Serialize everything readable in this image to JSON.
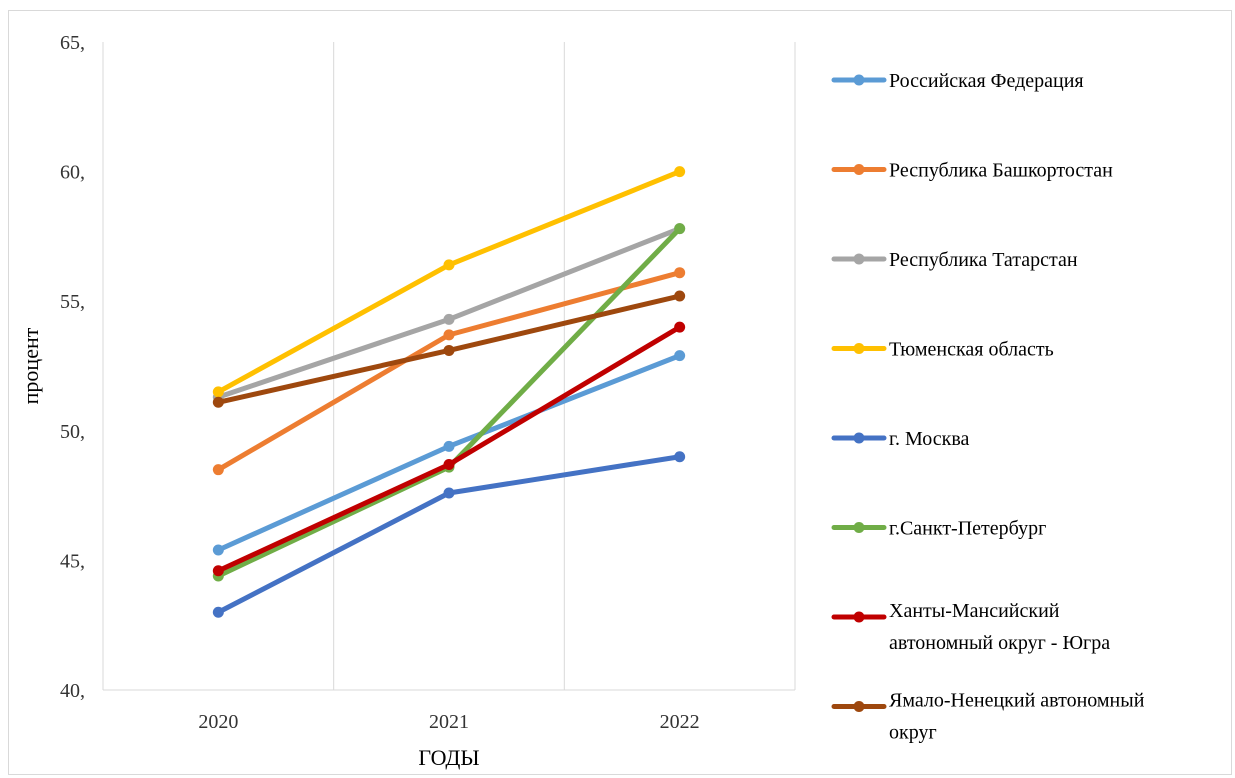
{
  "chart_data": {
    "type": "line",
    "title": "",
    "xlabel": "ГОДЫ",
    "ylabel": "процент",
    "categories": [
      "2020",
      "2021",
      "2022"
    ],
    "ylim": [
      40,
      65
    ],
    "yticks": [
      40,
      45,
      50,
      55,
      60,
      65
    ],
    "ytick_labels": [
      "40,",
      "45,",
      "50,",
      "55,",
      "60,",
      "65,"
    ],
    "grid": "vertical",
    "legend_position": "right",
    "series": [
      {
        "name": "Российская Федерация",
        "values": [
          45.4,
          49.4,
          52.9
        ],
        "color": "#5B9BD5"
      },
      {
        "name": "Республика Башкортостан",
        "values": [
          48.5,
          53.7,
          56.1
        ],
        "color": "#ED7D31"
      },
      {
        "name": "Республика Татарстан",
        "values": [
          51.3,
          54.3,
          57.8
        ],
        "color": "#A5A5A5"
      },
      {
        "name": "Тюменская область",
        "values": [
          51.5,
          56.4,
          60.0
        ],
        "color": "#FFC000"
      },
      {
        "name": "г. Москва",
        "values": [
          43.0,
          47.6,
          49.0
        ],
        "color": "#4472C4"
      },
      {
        "name": "г.Санкт-Петербург",
        "values": [
          44.4,
          48.6,
          57.8
        ],
        "color": "#70AD47"
      },
      {
        "name": "Ханты-Мансийский автономный округ - Югра",
        "label_lines": [
          "Ханты-Мансийский",
          "автономный округ - Югра"
        ],
        "values": [
          44.6,
          48.7,
          54.0
        ],
        "color": "#C00000"
      },
      {
        "name": "Ямало-Ненецкий автономный округ",
        "label_lines": [
          "Ямало-Ненецкий автономный",
          "округ"
        ],
        "values": [
          51.1,
          53.1,
          55.2
        ],
        "color": "#9E480E"
      }
    ]
  }
}
